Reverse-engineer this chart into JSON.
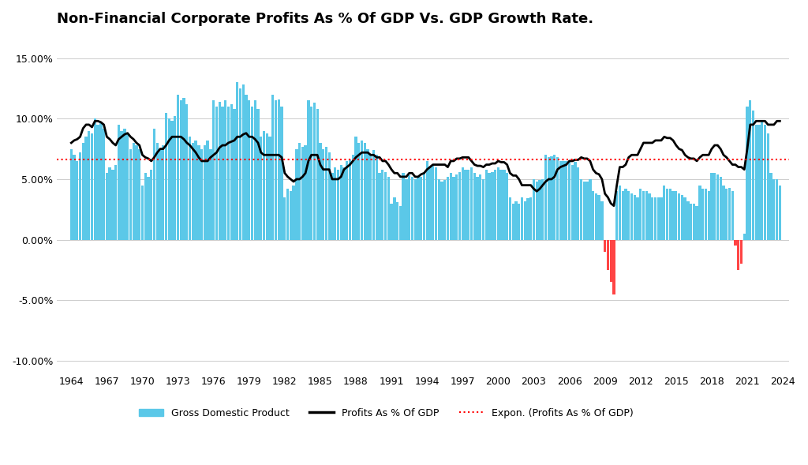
{
  "title": "Non-Financial Corporate Profits As % Of GDP Vs. GDP Growth Rate.",
  "background_color": "#ffffff",
  "bar_color_pos": "#5bc8e8",
  "bar_color_neg": "#ff4444",
  "line_color": "#000000",
  "hline_color": "#ff0000",
  "hline_value": 6.6,
  "ylim": [
    -11,
    17
  ],
  "yticks": [
    -10,
    -5,
    0,
    5,
    10,
    15
  ],
  "ytick_labels": [
    "-10.00%",
    "-5.00%",
    "0.00%",
    "5.00%",
    "10.00%",
    "15.00%"
  ],
  "title_fontsize": 13,
  "xtick_years": [
    1964,
    1967,
    1970,
    1973,
    1976,
    1979,
    1982,
    1985,
    1988,
    1991,
    1994,
    1997,
    2000,
    2003,
    2006,
    2009,
    2012,
    2015,
    2018,
    2021,
    2024
  ],
  "gdp_quarterly": [
    7.5,
    7.0,
    6.5,
    7.2,
    8.0,
    8.5,
    9.0,
    8.8,
    10.0,
    9.5,
    9.7,
    9.2,
    5.5,
    6.0,
    5.8,
    6.2,
    9.5,
    9.0,
    9.2,
    8.8,
    7.5,
    8.0,
    7.8,
    7.5,
    4.5,
    5.5,
    5.2,
    5.8,
    9.2,
    8.0,
    7.5,
    7.8,
    10.5,
    10.0,
    9.8,
    10.2,
    12.0,
    11.5,
    11.7,
    11.2,
    8.5,
    8.0,
    8.2,
    7.8,
    7.5,
    7.8,
    8.2,
    7.5,
    11.5,
    11.0,
    11.4,
    11.0,
    11.5,
    11.0,
    11.2,
    10.8,
    13.0,
    12.5,
    12.8,
    12.0,
    11.5,
    11.0,
    11.5,
    10.8,
    8.5,
    9.0,
    8.8,
    8.5,
    12.0,
    11.5,
    11.6,
    11.0,
    3.5,
    4.2,
    4.0,
    4.5,
    7.5,
    8.0,
    7.7,
    7.8,
    11.5,
    11.0,
    11.3,
    10.8,
    8.0,
    7.5,
    7.7,
    7.2,
    5.5,
    6.0,
    5.8,
    6.2,
    6.0,
    6.5,
    6.6,
    7.0,
    8.5,
    8.0,
    8.2,
    8.0,
    7.5,
    7.0,
    7.4,
    7.0,
    5.5,
    5.8,
    5.6,
    5.2,
    3.0,
    3.5,
    3.1,
    2.8,
    5.5,
    5.0,
    5.3,
    5.2,
    5.0,
    5.2,
    5.2,
    5.5,
    6.5,
    6.0,
    6.2,
    6.0,
    5.0,
    4.8,
    4.9,
    5.2,
    5.5,
    5.2,
    5.4,
    5.6,
    6.0,
    5.8,
    5.8,
    6.0,
    5.5,
    5.2,
    5.4,
    5.0,
    5.8,
    5.5,
    5.6,
    5.8,
    6.0,
    5.8,
    5.8,
    5.5,
    3.5,
    3.0,
    3.2,
    3.0,
    3.5,
    3.2,
    3.4,
    3.5,
    5.0,
    4.8,
    4.9,
    5.0,
    7.0,
    6.8,
    6.9,
    7.0,
    6.8,
    6.5,
    6.5,
    6.5,
    6.5,
    6.2,
    6.4,
    6.0,
    5.0,
    4.8,
    4.8,
    5.0,
    4.0,
    3.8,
    3.7,
    3.2,
    -1.0,
    -2.5,
    -3.5,
    -4.5,
    4.0,
    4.5,
    4.0,
    4.2,
    4.0,
    3.8,
    3.7,
    3.5,
    4.2,
    4.0,
    4.0,
    3.8,
    3.5,
    3.5,
    3.5,
    3.5,
    4.5,
    4.2,
    4.2,
    4.0,
    4.0,
    3.8,
    3.7,
    3.5,
    3.2,
    3.0,
    3.0,
    2.8,
    4.5,
    4.2,
    4.2,
    4.0,
    5.5,
    5.5,
    5.4,
    5.2,
    4.5,
    4.2,
    4.3,
    4.0,
    -0.5,
    -2.5,
    -2.0,
    0.5,
    11.0,
    11.5,
    10.7,
    9.5,
    9.5,
    9.8,
    9.5,
    8.8,
    5.5,
    5.0,
    5.0,
    4.5
  ],
  "profits_quarterly": [
    8.0,
    8.2,
    8.3,
    8.5,
    9.2,
    9.5,
    9.5,
    9.3,
    9.8,
    9.8,
    9.7,
    9.5,
    8.5,
    8.3,
    8.0,
    7.8,
    8.3,
    8.5,
    8.7,
    8.8,
    8.5,
    8.3,
    8.0,
    7.8,
    7.0,
    6.8,
    6.7,
    6.5,
    6.8,
    7.2,
    7.5,
    7.5,
    7.8,
    8.2,
    8.5,
    8.5,
    8.5,
    8.5,
    8.3,
    8.0,
    7.8,
    7.5,
    7.2,
    6.8,
    6.5,
    6.5,
    6.5,
    6.8,
    7.0,
    7.2,
    7.6,
    7.8,
    7.8,
    8.0,
    8.1,
    8.2,
    8.5,
    8.5,
    8.7,
    8.8,
    8.5,
    8.5,
    8.3,
    8.0,
    7.2,
    7.0,
    7.0,
    7.0,
    7.0,
    7.0,
    7.0,
    6.8,
    5.5,
    5.2,
    5.0,
    4.8,
    5.0,
    5.0,
    5.2,
    5.5,
    6.5,
    7.0,
    7.0,
    7.0,
    6.2,
    5.8,
    5.8,
    5.8,
    5.0,
    5.0,
    5.0,
    5.2,
    5.8,
    6.0,
    6.2,
    6.5,
    6.8,
    7.0,
    7.2,
    7.2,
    7.2,
    7.0,
    7.0,
    6.8,
    6.8,
    6.5,
    6.5,
    6.2,
    5.8,
    5.5,
    5.5,
    5.2,
    5.2,
    5.2,
    5.5,
    5.5,
    5.2,
    5.2,
    5.4,
    5.5,
    5.8,
    6.0,
    6.2,
    6.2,
    6.2,
    6.2,
    6.2,
    6.0,
    6.5,
    6.5,
    6.7,
    6.7,
    6.8,
    6.8,
    6.8,
    6.5,
    6.2,
    6.1,
    6.1,
    6.0,
    6.2,
    6.2,
    6.3,
    6.3,
    6.5,
    6.4,
    6.4,
    6.2,
    5.5,
    5.3,
    5.3,
    5.0,
    4.5,
    4.5,
    4.5,
    4.5,
    4.2,
    4.0,
    4.2,
    4.5,
    4.8,
    5.0,
    5.0,
    5.2,
    5.8,
    6.0,
    6.1,
    6.2,
    6.5,
    6.5,
    6.6,
    6.6,
    6.8,
    6.7,
    6.7,
    6.5,
    5.8,
    5.5,
    5.4,
    5.0,
    3.8,
    3.5,
    3.0,
    2.8,
    4.5,
    6.0,
    6.0,
    6.2,
    6.8,
    7.0,
    7.0,
    7.0,
    7.5,
    8.0,
    8.0,
    8.0,
    8.0,
    8.2,
    8.2,
    8.2,
    8.5,
    8.4,
    8.4,
    8.2,
    7.8,
    7.5,
    7.4,
    7.0,
    6.8,
    6.7,
    6.7,
    6.5,
    6.8,
    7.0,
    7.0,
    7.0,
    7.5,
    7.8,
    7.8,
    7.5,
    7.0,
    6.8,
    6.5,
    6.2,
    6.2,
    6.0,
    6.0,
    5.8,
    7.5,
    9.5,
    9.5,
    9.8,
    9.8,
    9.8,
    9.8,
    9.5,
    9.5,
    9.5,
    9.8,
    9.8
  ]
}
